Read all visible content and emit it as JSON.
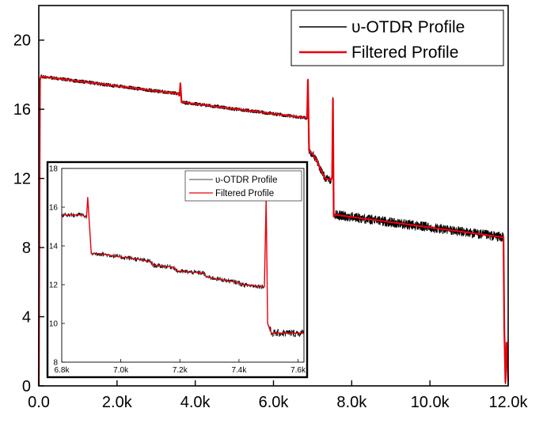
{
  "chart_data": [
    {
      "type": "line",
      "title": "",
      "xlabel": "",
      "ylabel": "",
      "xlim": [
        0,
        12000
      ],
      "ylim": [
        0,
        22
      ],
      "x_ticks": [
        0,
        2000,
        4000,
        6000,
        8000,
        10000,
        12000
      ],
      "x_tick_labels": [
        "0.0",
        "2.0k",
        "4.0k",
        "6.0k",
        "8.0k",
        "10.0k",
        "12.0k"
      ],
      "y_ticks": [
        0,
        4,
        8,
        12,
        16,
        20
      ],
      "y_tick_labels": [
        "0",
        "4",
        "8",
        "12",
        "16",
        "20"
      ],
      "grid": false,
      "legend_position": "top-right",
      "series": [
        {
          "name": "υ-OTDR Profile",
          "color": "#000000",
          "style": "noisy raw trace",
          "x": [
            0,
            30,
            60,
            3560,
            3600,
            3620,
            3650,
            3690,
            6830,
            6860,
            6880,
            6910,
            7010,
            7110,
            7250,
            7330,
            7470,
            7500,
            7520,
            7540,
            7580,
            11850,
            11880,
            11900,
            11930,
            11960,
            12000
          ],
          "y": [
            0,
            17.7,
            17.9,
            16.9,
            16.8,
            17.5,
            16.4,
            16.4,
            15.5,
            15.5,
            17.7,
            13.6,
            13.4,
            13.0,
            12.3,
            12.0,
            11.9,
            12.1,
            16.6,
            9.8,
            9.9,
            8.6,
            8.6,
            3.4,
            0.2,
            2.5,
            0.3
          ]
        },
        {
          "name": "Filtered Profile",
          "color": "#e8000b",
          "style": "smooth filtered trace",
          "x": [
            0,
            30,
            60,
            3560,
            3600,
            3620,
            3650,
            3690,
            6830,
            6860,
            6880,
            6910,
            7010,
            7110,
            7250,
            7330,
            7470,
            7500,
            7520,
            7540,
            7580,
            11850,
            11880,
            11900,
            11930,
            11960,
            12000
          ],
          "y": [
            0,
            17.7,
            17.9,
            16.9,
            16.8,
            17.5,
            16.4,
            16.4,
            15.5,
            15.5,
            17.7,
            13.6,
            13.4,
            13.0,
            12.3,
            12.0,
            11.9,
            12.1,
            16.6,
            9.8,
            9.9,
            8.6,
            8.6,
            3.4,
            0.2,
            2.5,
            0.3
          ]
        }
      ]
    },
    {
      "type": "line",
      "title": "",
      "xlabel": "",
      "ylabel": "",
      "role": "inset",
      "xlim": [
        6800,
        7620
      ],
      "ylim": [
        8,
        18
      ],
      "x_ticks": [
        6800,
        7000,
        7200,
        7400,
        7600
      ],
      "x_tick_labels": [
        "6.8k",
        "7.0k",
        "7.2k",
        "7.4k",
        "7.6k"
      ],
      "y_ticks": [
        8,
        10,
        12,
        14,
        16,
        18
      ],
      "y_tick_labels": [
        "8",
        "10",
        "12",
        "14",
        "16",
        "18"
      ],
      "grid": false,
      "legend_position": "top-right",
      "series": [
        {
          "name": "υ-OTDR Profile",
          "color": "#000000",
          "style": "noisy raw trace",
          "x": [
            6800,
            6870,
            6880,
            6884,
            6888,
            6900,
            6930,
            7010,
            7020,
            7100,
            7110,
            7180,
            7190,
            7280,
            7290,
            7400,
            7410,
            7480,
            7486,
            7492,
            7497,
            7510,
            7540,
            7620
          ],
          "y": [
            15.6,
            15.6,
            15.5,
            15.5,
            16.5,
            13.6,
            13.6,
            13.4,
            13.4,
            13.2,
            13.0,
            12.9,
            12.7,
            12.6,
            12.4,
            12.1,
            12.0,
            11.9,
            11.9,
            16.4,
            10.0,
            9.5,
            9.5,
            9.5
          ]
        },
        {
          "name": "Filtered Profile",
          "color": "#e8000b",
          "style": "smooth filtered trace",
          "x": [
            6800,
            6870,
            6880,
            6884,
            6888,
            6900,
            6930,
            7010,
            7020,
            7100,
            7110,
            7180,
            7190,
            7280,
            7290,
            7400,
            7410,
            7480,
            7486,
            7492,
            7497,
            7510,
            7540,
            7620
          ],
          "y": [
            15.6,
            15.6,
            15.5,
            15.5,
            16.5,
            13.6,
            13.6,
            13.4,
            13.4,
            13.2,
            13.0,
            12.9,
            12.7,
            12.6,
            12.4,
            12.1,
            12.0,
            11.9,
            11.9,
            16.4,
            10.0,
            9.5,
            9.5,
            9.5
          ]
        }
      ]
    }
  ]
}
